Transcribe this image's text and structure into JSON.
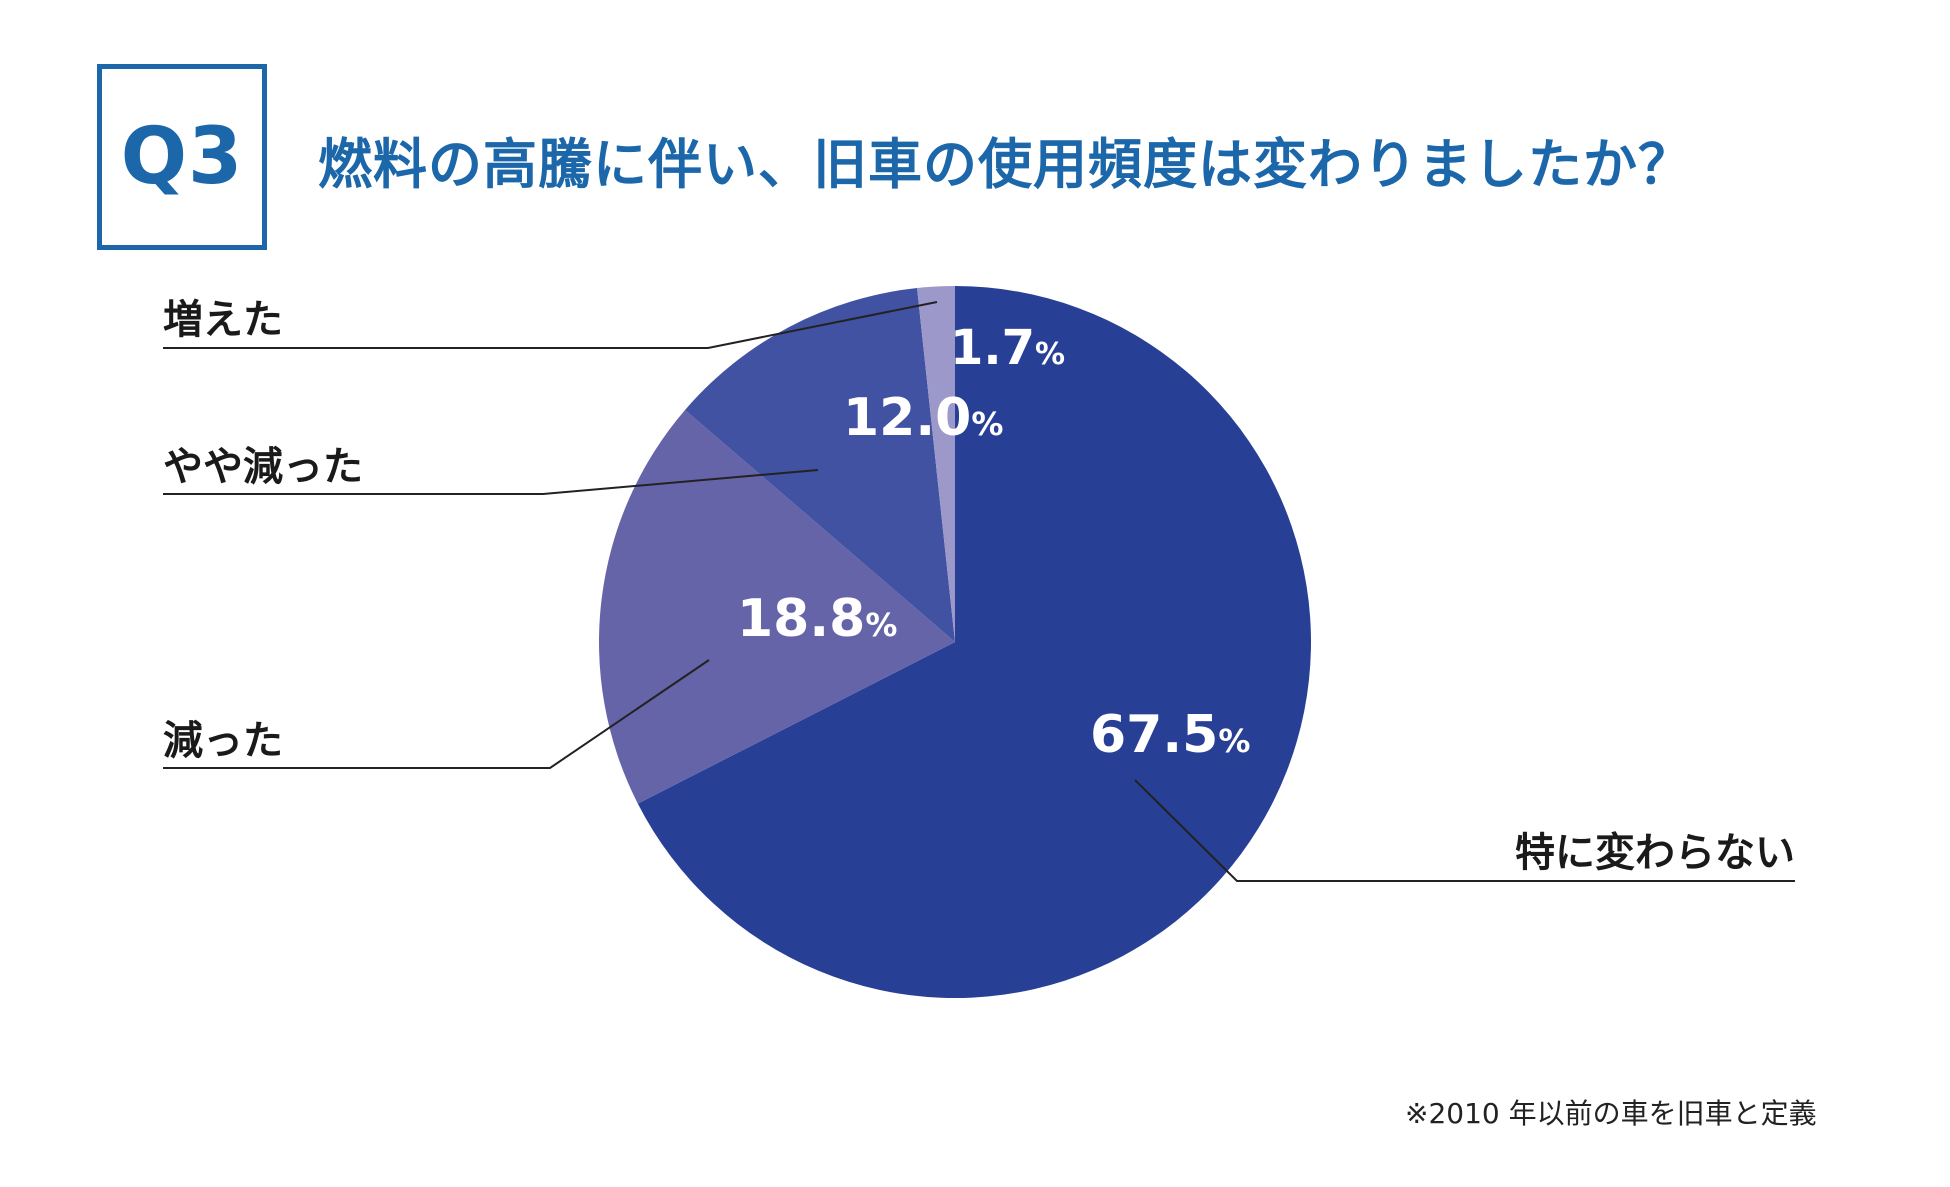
{
  "question": {
    "number": "Q3",
    "text": "燃料の高騰に伴い、旧車の使用頻度は変わりましたか？"
  },
  "colors": {
    "accent": "#1b67aa",
    "label_text": "#1a1a1a",
    "value_text": "#ffffff",
    "leader_line": "#222222"
  },
  "chart_data": {
    "type": "pie",
    "title": "燃料の高騰に伴い、旧車の使用頻度は変わりましたか？",
    "start": "12 o'clock, clockwise",
    "unit": "%",
    "slices": [
      {
        "label": "特に変わらない",
        "value": 67.5,
        "display": "67.5",
        "color": "#283f96"
      },
      {
        "label": "減った",
        "value": 18.8,
        "display": "18.8",
        "color": "#6664a9"
      },
      {
        "label": "やや減った",
        "value": 12.0,
        "display": "12.0",
        "color": "#4152a2"
      },
      {
        "label": "増えた",
        "value": 1.7,
        "display": "1.7",
        "color": "#9d98ca"
      }
    ]
  },
  "footnote": "※2010 年以前の車を旧車と定義"
}
